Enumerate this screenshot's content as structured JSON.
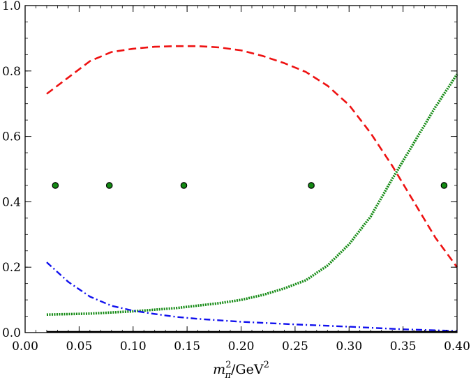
{
  "chart_data": {
    "type": "line",
    "xlabel": "m²π/GeV²",
    "xlabel_parts": {
      "base": "m",
      "sup": "2",
      "sub": "π",
      "unit": "/GeV",
      "unit_sup": "2"
    },
    "xlim": [
      0.0,
      0.4
    ],
    "ylim": [
      0.0,
      1.0
    ],
    "xticks": [
      "0.00",
      "0.05",
      "0.10",
      "0.15",
      "0.20",
      "0.25",
      "0.30",
      "0.35",
      "0.40"
    ],
    "xtick_values": [
      0.0,
      0.05,
      0.1,
      0.15,
      0.2,
      0.25,
      0.3,
      0.35,
      0.4
    ],
    "yticks": [
      "0.0",
      "0.2",
      "0.4",
      "0.6",
      "0.8",
      "1.0"
    ],
    "ytick_values": [
      0.0,
      0.2,
      0.4,
      0.6,
      0.8,
      1.0
    ],
    "grid": false,
    "legend": "none",
    "series": [
      {
        "style": "dashed",
        "color": "#ee1111",
        "x": [
          0.02,
          0.04,
          0.06,
          0.08,
          0.1,
          0.12,
          0.14,
          0.16,
          0.18,
          0.2,
          0.22,
          0.24,
          0.26,
          0.28,
          0.3,
          0.32,
          0.34,
          0.36,
          0.38,
          0.4
        ],
        "y": [
          0.73,
          0.78,
          0.83,
          0.858,
          0.868,
          0.874,
          0.876,
          0.876,
          0.872,
          0.863,
          0.846,
          0.824,
          0.797,
          0.755,
          0.696,
          0.61,
          0.51,
          0.4,
          0.29,
          0.2
        ]
      },
      {
        "style": "dotted",
        "color": "#138a13",
        "x": [
          0.02,
          0.06,
          0.1,
          0.14,
          0.18,
          0.2,
          0.22,
          0.24,
          0.26,
          0.28,
          0.3,
          0.32,
          0.34,
          0.36,
          0.38,
          0.4
        ],
        "y": [
          0.055,
          0.058,
          0.065,
          0.075,
          0.09,
          0.1,
          0.115,
          0.135,
          0.16,
          0.205,
          0.27,
          0.355,
          0.47,
          0.58,
          0.69,
          0.79
        ]
      },
      {
        "style": "dashdot",
        "color": "#1010ee",
        "x": [
          0.02,
          0.04,
          0.06,
          0.08,
          0.1,
          0.12,
          0.14,
          0.16,
          0.2,
          0.25,
          0.3,
          0.35,
          0.4
        ],
        "y": [
          0.215,
          0.155,
          0.11,
          0.082,
          0.067,
          0.057,
          0.048,
          0.042,
          0.033,
          0.025,
          0.018,
          0.01,
          0.005
        ]
      },
      {
        "style": "solid",
        "color": "#000000",
        "x": [
          0.02,
          0.4
        ],
        "y": [
          0.002,
          0.002
        ]
      },
      {
        "style": "points",
        "color": "#138a13",
        "x": [
          0.028,
          0.078,
          0.147,
          0.265,
          0.388
        ],
        "y": [
          0.45,
          0.45,
          0.45,
          0.45,
          0.45
        ]
      }
    ]
  }
}
